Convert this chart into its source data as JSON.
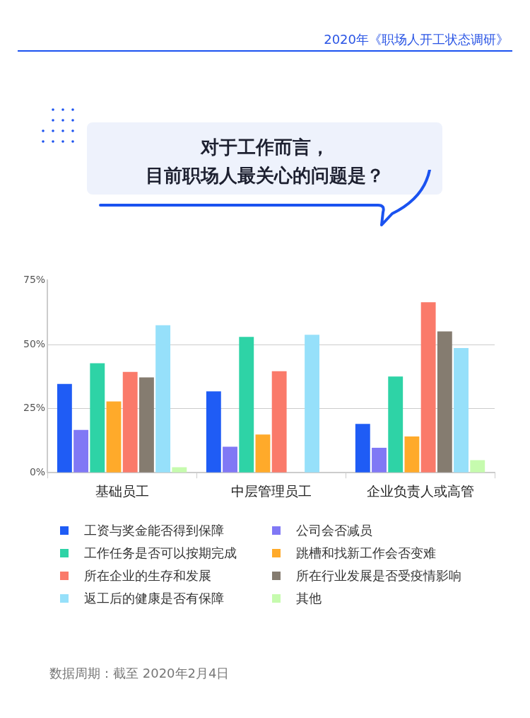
{
  "chart_data": {
    "type": "bar",
    "title": "对于工作而言，目前职场人最关心的问题是？",
    "annotations": [
      "2020年《职场人开工状态调研》",
      "数据周期：截至 2020年2月4日"
    ],
    "categories": [
      "基础员工",
      "中层管理员工",
      "企业负责人或高管"
    ],
    "series": [
      {
        "name": "工资与奖金能否得到保障",
        "color": "#1f5cf5",
        "values": [
          34.6,
          31.7,
          19.0
        ]
      },
      {
        "name": "公司会否减员",
        "color": "#8078f5",
        "values": [
          16.7,
          10.1,
          9.7
        ]
      },
      {
        "name": "工作任务是否可以按期完成",
        "color": "#2ed3a6",
        "values": [
          42.7,
          53.0,
          37.5
        ]
      },
      {
        "name": "跳槽和找新工作会否变难",
        "color": "#ffaa2a",
        "values": [
          27.8,
          14.9,
          14.1
        ]
      },
      {
        "name": "所在企业的生存和发展",
        "color": "#fa7a6a",
        "values": [
          39.3,
          39.6,
          66.5
        ]
      },
      {
        "name": "所在行业发展是否受疫情影响",
        "color": "#857c70",
        "values": [
          37.2,
          0,
          55.1
        ]
      },
      {
        "name": "返工后的健康是否有保障",
        "color": "#96e0fa",
        "values": [
          57.5,
          53.8,
          48.6
        ]
      },
      {
        "name": "其他",
        "color": "#c6fbae",
        "values": [
          2.1,
          0,
          4.9
        ]
      }
    ],
    "ylim": [
      0,
      75
    ],
    "yticks": [
      {
        "value": 0,
        "label": "0%"
      },
      {
        "value": 25,
        "label": "25%"
      },
      {
        "value": 50,
        "label": "50%"
      },
      {
        "value": 75,
        "label": "75%"
      }
    ],
    "grid": "y",
    "legend": "bottom"
  }
}
